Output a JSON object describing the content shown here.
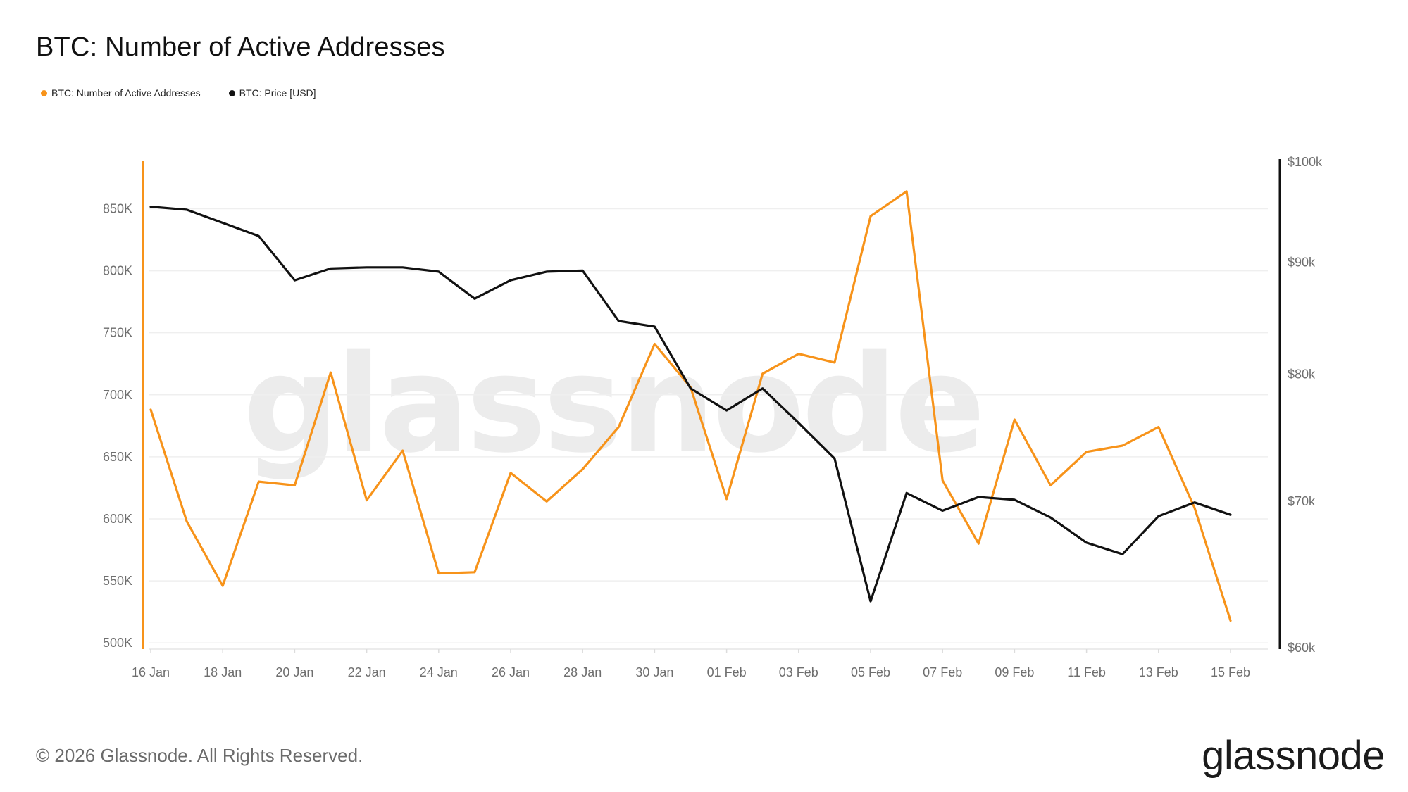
{
  "title": "BTC: Number of Active Addresses",
  "legend": [
    {
      "label": "BTC: Number of Active Addresses",
      "color": "#f7931a"
    },
    {
      "label": "BTC: Price [USD]",
      "color": "#111111"
    }
  ],
  "watermark": "glassnode",
  "footer": {
    "copyright": "© 2026 Glassnode. All Rights Reserved.",
    "brand": "glassnode"
  },
  "chart_data": {
    "type": "line",
    "x": [
      "16 Jan",
      "17 Jan",
      "18 Jan",
      "19 Jan",
      "20 Jan",
      "21 Jan",
      "22 Jan",
      "23 Jan",
      "24 Jan",
      "25 Jan",
      "26 Jan",
      "27 Jan",
      "28 Jan",
      "29 Jan",
      "30 Jan",
      "31 Jan",
      "01 Feb",
      "02 Feb",
      "03 Feb",
      "04 Feb",
      "05 Feb",
      "06 Feb",
      "07 Feb",
      "08 Feb",
      "09 Feb",
      "10 Feb",
      "11 Feb",
      "12 Feb",
      "13 Feb",
      "14 Feb",
      "15 Feb"
    ],
    "x_tick_labels": [
      "16 Jan",
      "18 Jan",
      "20 Jan",
      "22 Jan",
      "24 Jan",
      "26 Jan",
      "28 Jan",
      "30 Jan",
      "01 Feb",
      "03 Feb",
      "05 Feb",
      "07 Feb",
      "09 Feb",
      "11 Feb",
      "13 Feb",
      "15 Feb"
    ],
    "series": [
      {
        "name": "BTC: Number of Active Addresses",
        "axis": "left",
        "color": "#f7931a",
        "values": [
          688000,
          598000,
          546000,
          630000,
          627000,
          718000,
          615000,
          655000,
          556000,
          557000,
          637000,
          614000,
          640000,
          674000,
          741000,
          706000,
          616000,
          717000,
          733000,
          726000,
          844000,
          864000,
          631000,
          580000,
          680000,
          627000,
          654000,
          659000,
          674000,
          609000,
          518000
        ]
      },
      {
        "name": "BTC: Price [USD]",
        "axis": "right",
        "color": "#111111",
        "values": [
          95400,
          95100,
          93800,
          92500,
          88300,
          89400,
          89500,
          89500,
          89100,
          86600,
          88300,
          89100,
          89200,
          84600,
          84100,
          78800,
          77000,
          78800,
          76000,
          73200,
          63000,
          70600,
          69300,
          70300,
          70100,
          68800,
          67000,
          66200,
          68900,
          69900,
          69000
        ]
      }
    ],
    "y_left": {
      "ticks": [
        "850K",
        "800K",
        "750K",
        "700K",
        "650K",
        "600K",
        "550K",
        "500K"
      ],
      "tick_values": [
        850000,
        800000,
        750000,
        700000,
        650000,
        600000,
        550000,
        500000
      ],
      "range": [
        495000,
        890000
      ]
    },
    "y_right": {
      "ticks": [
        "$100k",
        "$90k",
        "$80k",
        "$70k",
        "$60k"
      ],
      "tick_values": [
        100000,
        90000,
        80000,
        70000,
        60000
      ],
      "scale": "log",
      "range": [
        60000,
        100000
      ]
    },
    "grid": "horizontal",
    "legend_position": "top-left"
  }
}
